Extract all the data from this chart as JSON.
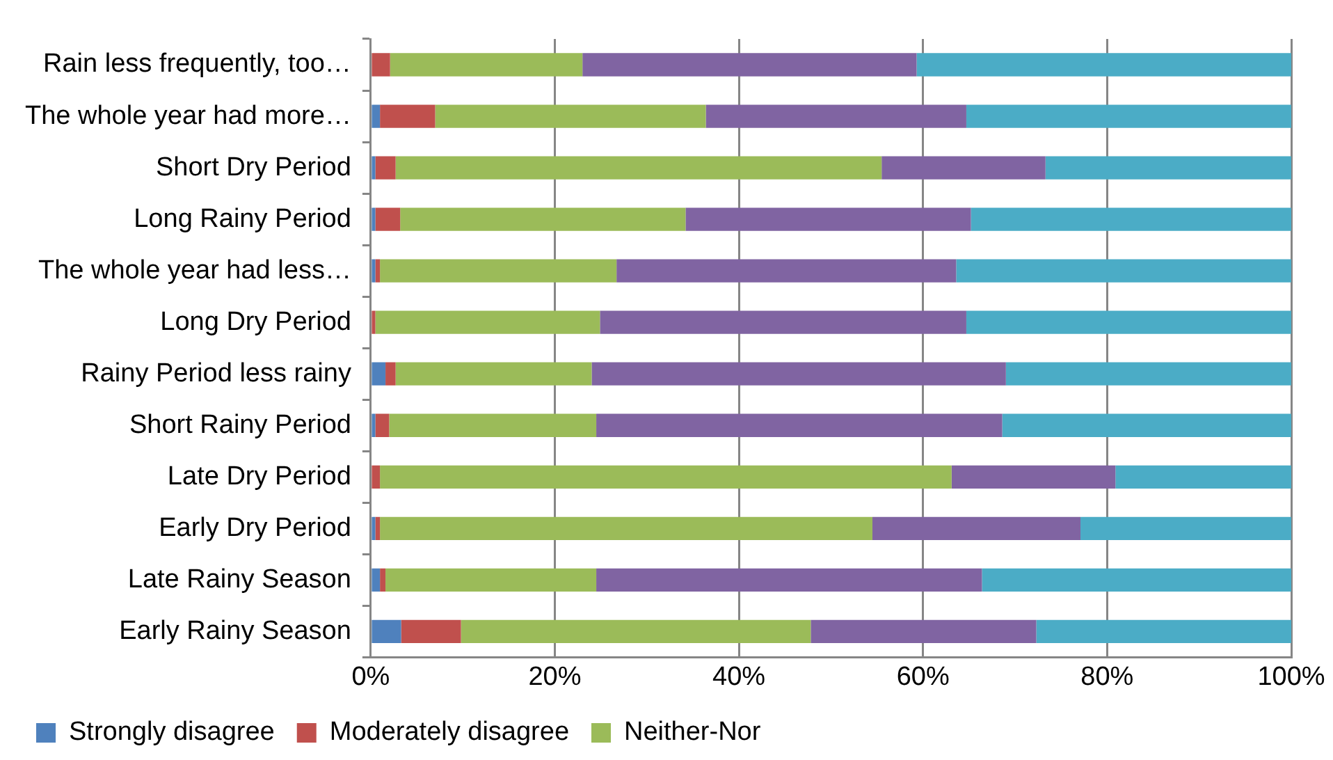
{
  "chart_data": {
    "type": "bar",
    "orientation": "horizontal",
    "stacked": true,
    "categories": [
      "Rain less frequently, too…",
      "The whole year had more…",
      "Short Dry Period",
      "Long Rainy Period",
      "The whole year had less…",
      "Long Dry Period",
      "Rainy Period less rainy",
      "Short Rainy Period",
      "Late Dry Period",
      "Early Dry Period",
      "Late Rainy Season",
      "Early Rainy Season"
    ],
    "series": [
      {
        "name": "Strongly disagree",
        "color": "#4f81bd",
        "values": [
          0,
          1.0,
          0.5,
          0.5,
          0.5,
          0,
          1.6,
          0.5,
          0,
          0.5,
          1.0,
          3.3
        ]
      },
      {
        "name": "Moderately disagree",
        "color": "#c0504d",
        "values": [
          2.1,
          6.0,
          2.2,
          2.7,
          0.5,
          0.5,
          1.1,
          1.5,
          1.0,
          0.5,
          0.6,
          6.5
        ]
      },
      {
        "name": "Neither-Nor",
        "color": "#9bbb59",
        "values": [
          20.9,
          29.4,
          52.8,
          31.0,
          25.7,
          24.4,
          21.3,
          22.5,
          62.1,
          53.5,
          22.9,
          38.0
        ]
      },
      {
        "color": "#8064a2",
        "values": [
          36.3,
          28.3,
          17.8,
          31.0,
          36.9,
          39.8,
          45.0,
          44.1,
          17.8,
          22.6,
          41.9,
          24.5
        ]
      },
      {
        "color": "#4bacc6",
        "values": [
          40.7,
          35.3,
          26.7,
          34.8,
          36.4,
          35.3,
          31.0,
          31.4,
          19.1,
          22.9,
          33.6,
          27.7
        ]
      }
    ],
    "xlim": [
      0,
      100
    ],
    "xticks": [
      {
        "value": 0,
        "label": "0%"
      },
      {
        "value": 20,
        "label": "20%"
      },
      {
        "value": 40,
        "label": "40%"
      },
      {
        "value": 60,
        "label": "60%"
      },
      {
        "value": 80,
        "label": "80%"
      },
      {
        "value": 100,
        "label": "100%"
      }
    ],
    "grid": "x",
    "legend": "bottom"
  }
}
